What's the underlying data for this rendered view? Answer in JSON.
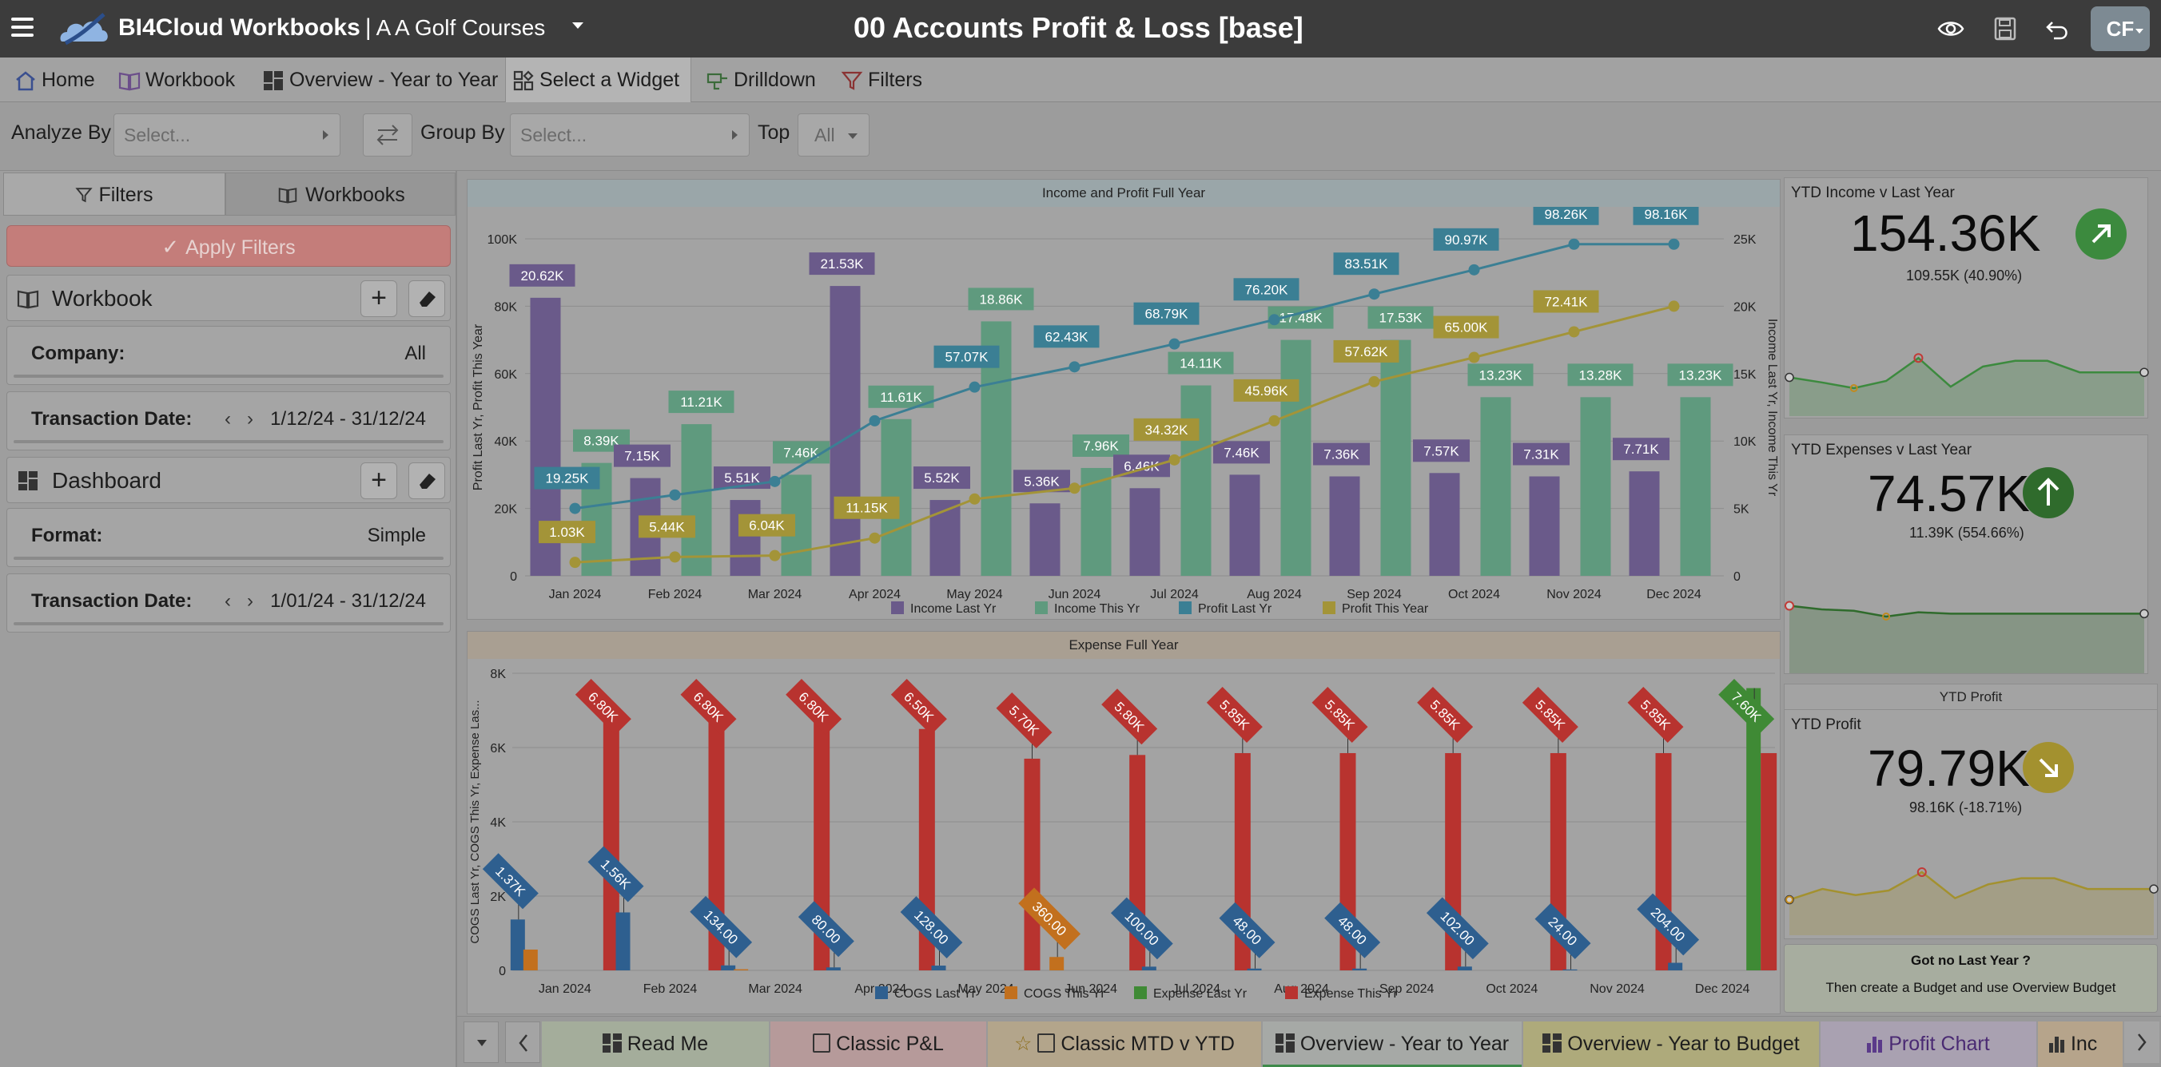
{
  "header": {
    "app_name": "BI4Cloud Workbooks",
    "separator": "|",
    "company": "A A Golf Courses",
    "page_title": "00 Accounts Profit & Loss [base]",
    "user_initials": "CF"
  },
  "nav": {
    "items": [
      {
        "label": "Home",
        "icon": "home-icon"
      },
      {
        "label": "Workbook",
        "icon": "book-icon"
      },
      {
        "label": "Overview - Year to Year",
        "icon": "dashboard-icon"
      },
      {
        "label": "Select a Widget",
        "icon": "widget-icon"
      },
      {
        "label": "Drilldown",
        "icon": "drill-icon"
      },
      {
        "label": "Filters",
        "icon": "filter-icon"
      }
    ]
  },
  "toolbar": {
    "analyze_by_label": "Analyze By",
    "analyze_by_placeholder": "Select...",
    "group_by_label": "Group By",
    "group_by_placeholder": "Select...",
    "top_label": "Top",
    "top_value": "All"
  },
  "left_panel": {
    "tabs": [
      "Filters",
      "Workbooks"
    ],
    "apply_label": "Apply Filters",
    "workbook_section": {
      "title": "Workbook",
      "fields": [
        {
          "label": "Company:",
          "value": "All"
        },
        {
          "label": "Transaction Date:",
          "value": "1/12/24 - 31/12/24"
        }
      ]
    },
    "dashboard_section": {
      "title": "Dashboard",
      "fields": [
        {
          "label": "Format:",
          "value": "Simple"
        },
        {
          "label": "Transaction Date:",
          "value": "1/01/24 - 31/12/24"
        }
      ]
    }
  },
  "chart_data": [
    {
      "type": "bar",
      "title": "Income and Profit Full Year",
      "categories": [
        "Jan 2024",
        "Feb 2024",
        "Mar 2024",
        "Apr 2024",
        "May 2024",
        "Jun 2024",
        "Jul 2024",
        "Aug 2024",
        "Sep 2024",
        "Oct 2024",
        "Nov 2024",
        "Dec 2024"
      ],
      "ylabel": "Profit Last Yr, Profit This Year",
      "y2label": "Income Last Yr, Income This Yr",
      "ylim": [
        0,
        100000
      ],
      "y2lim": [
        0,
        25000
      ],
      "yticks": [
        "0",
        "20K",
        "40K",
        "60K",
        "80K",
        "100K"
      ],
      "y2ticks": [
        "0",
        "5K",
        "10K",
        "15K",
        "20K",
        "25K"
      ],
      "series": [
        {
          "name": "Income Last Yr",
          "kind": "bar",
          "axis": "left",
          "color": "#6a5a8a",
          "values": [
            82500,
            29000,
            22500,
            86000,
            22500,
            21500,
            26000,
            30000,
            29500,
            30500,
            29500,
            31000
          ],
          "labels": [
            "20.62K",
            "7.15K",
            "5.51K",
            "21.53K",
            "5.52K",
            "5.36K",
            "6.46K",
            "7.46K",
            "7.36K",
            "7.57K",
            "7.31K",
            "7.71K"
          ]
        },
        {
          "name": "Income This Yr",
          "kind": "bar",
          "axis": "left",
          "color": "#5f9a7e",
          "values": [
            33500,
            45000,
            30000,
            46500,
            75500,
            32000,
            56500,
            70000,
            70000,
            53000,
            53000,
            53000
          ],
          "labels": [
            "8.39K",
            "11.21K",
            "7.46K",
            "11.61K",
            "18.86K",
            "7.96K",
            "14.11K",
            "17.48K",
            "17.53K",
            "13.23K",
            "13.28K",
            "13.23K"
          ]
        },
        {
          "name": "Profit Last Yr",
          "kind": "line",
          "axis": "right",
          "color": "#3b7f94",
          "values": [
            5000,
            6000,
            7000,
            11500,
            14000,
            15500,
            17200,
            19000,
            20900,
            22700,
            24600,
            24600
          ],
          "labels": [
            "19.25K",
            "",
            "",
            "",
            "57.07K",
            "62.43K",
            "68.79K",
            "76.20K",
            "83.51K",
            "90.97K",
            "98.26K",
            "98.16K"
          ]
        },
        {
          "name": "Profit This Year",
          "kind": "line",
          "axis": "right",
          "color": "#a39438",
          "values": [
            1000,
            1400,
            1500,
            2800,
            5700,
            6500,
            8600,
            11500,
            14400,
            16200,
            18100,
            20000
          ],
          "labels": [
            "1.03K",
            "5.44K",
            "6.04K",
            "11.15K",
            "",
            "",
            "34.32K",
            "45.96K",
            "57.62K",
            "65.00K",
            "72.41K",
            ""
          ]
        }
      ],
      "legend": "bottom"
    },
    {
      "type": "bar",
      "title": "Expense Full Year",
      "categories": [
        "Jan 2024",
        "Feb 2024",
        "Mar 2024",
        "Apr 2024",
        "May 2024",
        "Jun 2024",
        "Jul 2024",
        "Aug 2024",
        "Sep 2024",
        "Oct 2024",
        "Nov 2024",
        "Dec 2024"
      ],
      "ylabel": "COGS Last Yr, COGS This Yr, Expense Las...",
      "ylim": [
        0,
        8000
      ],
      "yticks": [
        "0",
        "2K",
        "4K",
        "6K",
        "8K"
      ],
      "series": [
        {
          "name": "COGS Last Yr",
          "color": "#2e5f8f",
          "values": [
            1370,
            1560,
            134,
            80,
            128,
            0,
            100,
            48,
            48,
            102,
            24,
            204
          ],
          "labels": [
            "1.37K",
            "1.56K",
            "134.00",
            "80.00",
            "128.00",
            "",
            "100.00",
            "48.00",
            "48.00",
            "102.00",
            "24.00",
            "204.00"
          ]
        },
        {
          "name": "COGS This Yr",
          "color": "#c2701e",
          "values": [
            560,
            0,
            30,
            0,
            0,
            360,
            0,
            0,
            0,
            0,
            0,
            0
          ],
          "labels": [
            "",
            "",
            "",
            "",
            "",
            "360.00",
            "",
            "",
            "",
            "",
            "",
            ""
          ]
        },
        {
          "name": "Expense Last Yr",
          "color": "#3f8a35",
          "values": [
            0,
            0,
            0,
            0,
            0,
            0,
            0,
            0,
            0,
            0,
            0,
            7600
          ],
          "labels": [
            "",
            "",
            "",
            "",
            "",
            "",
            "",
            "",
            "",
            "",
            "",
            "7.60K"
          ]
        },
        {
          "name": "Expense This Yr",
          "color": "#b8332f",
          "values": [
            6800,
            6800,
            6800,
            6500,
            5700,
            5800,
            5850,
            5850,
            5850,
            5850,
            5850,
            5850
          ],
          "labels": [
            "6.80K",
            "6.80K",
            "6.80K",
            "6.50K",
            "5.70K",
            "5.80K",
            "5.85K",
            "5.85K",
            "5.85K",
            "5.85K",
            "5.85K",
            ""
          ]
        }
      ],
      "legend": "bottom"
    }
  ],
  "kpis": [
    {
      "title": "YTD Income v Last Year",
      "value": "154.36K",
      "sub": "109.55K (40.90%)",
      "arrow": "up-right",
      "color": "#3c8a3e",
      "spark": [
        0.45,
        0.38,
        0.3,
        0.4,
        0.72,
        0.32,
        0.6,
        0.68,
        0.68,
        0.52,
        0.52,
        0.52
      ]
    },
    {
      "title": "YTD Expenses v Last Year",
      "value": "74.57K",
      "sub": "11.39K (554.66%)",
      "arrow": "up",
      "color": "#2f6b2c",
      "spark": [
        0.85,
        0.8,
        0.78,
        0.7,
        0.76,
        0.74,
        0.74,
        0.74,
        0.74,
        0.74,
        0.74,
        0.74
      ]
    },
    {
      "title": "YTD Profit",
      "value": "79.79K",
      "sub": "98.16K (-18.71%)",
      "arrow": "down-right",
      "color": "#a3912f",
      "heading": "YTD Profit",
      "spark": [
        0.38,
        0.52,
        0.44,
        0.5,
        0.74,
        0.4,
        0.58,
        0.66,
        0.66,
        0.52,
        0.52,
        0.52
      ]
    }
  ],
  "tip": {
    "line1": "Got no Last Year ?",
    "line2": "Then create a Budget and use Overview Budget"
  },
  "bottom_tabs": [
    {
      "label": "Read Me",
      "color": "#a4ad9b"
    },
    {
      "label": "Classic P&L",
      "color": "#b69a9a"
    },
    {
      "label": "Classic MTD v YTD",
      "color": "#b3a58b"
    },
    {
      "label": "Overview - Year to Year",
      "color": "#a6a9a6"
    },
    {
      "label": "Overview - Year to Budget",
      "color": "#aeaa7b"
    },
    {
      "label": "Profit Chart",
      "color": "#a9a1b1"
    },
    {
      "label": "Inc",
      "color": "#b6a48b"
    }
  ]
}
